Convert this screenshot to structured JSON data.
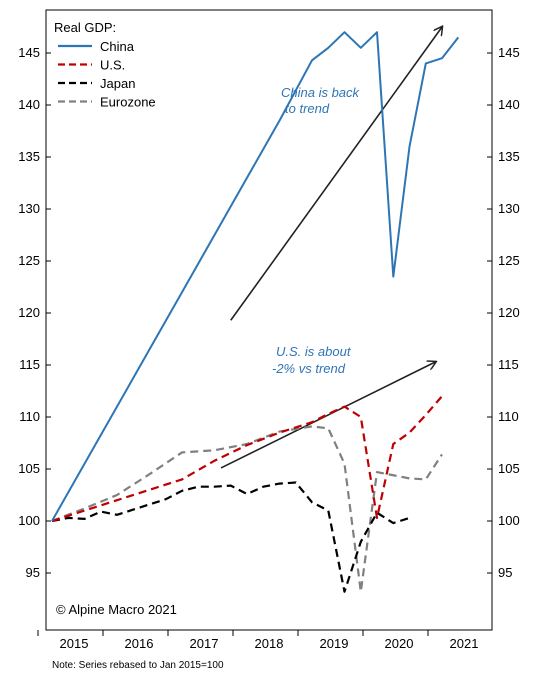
{
  "chart_data": {
    "type": "line",
    "legend_title": "Real GDP:",
    "legend_position": "top-left",
    "ylim": [
      90,
      148
    ],
    "yticks": [
      95,
      100,
      105,
      110,
      115,
      120,
      125,
      130,
      135,
      140,
      145
    ],
    "ytick_labels": [
      "95",
      "100",
      "105",
      "110",
      "115",
      "120",
      "125",
      "130",
      "135",
      "140",
      "145"
    ],
    "xlim": [
      2015.0,
      2021.5
    ],
    "xticks": [
      2015,
      2016,
      2017,
      2018,
      2019,
      2020,
      2021
    ],
    "xtick_labels": [
      "2015",
      "2016",
      "2017",
      "2018",
      "2019",
      "2020",
      "2021"
    ],
    "grid": false,
    "series": [
      {
        "name": "China",
        "color": "#2e75b6",
        "style": "solid",
        "points": [
          [
            2015.0,
            100
          ],
          [
            2015.5,
            105.5
          ],
          [
            2016.0,
            111
          ],
          [
            2016.5,
            116.5
          ],
          [
            2017.0,
            122
          ],
          [
            2017.5,
            127.5
          ],
          [
            2018.0,
            133
          ],
          [
            2018.5,
            138.5
          ],
          [
            2019.0,
            144.3
          ],
          [
            2019.25,
            145.5
          ],
          [
            2019.5,
            147
          ],
          [
            2019.75,
            145.5
          ],
          [
            2020.0,
            147
          ],
          [
            2020.25,
            123.5
          ],
          [
            2020.5,
            136
          ],
          [
            2020.75,
            144
          ],
          [
            2021.0,
            144.5
          ],
          [
            2021.25,
            146.5
          ]
        ]
      },
      {
        "name": "U.S.",
        "color": "#c00000",
        "style": "dashed",
        "points": [
          [
            2015.0,
            100
          ],
          [
            2015.5,
            101
          ],
          [
            2016.0,
            102
          ],
          [
            2016.5,
            103
          ],
          [
            2017.0,
            104
          ],
          [
            2017.5,
            105.8
          ],
          [
            2018.0,
            107.3
          ],
          [
            2018.5,
            108.5
          ],
          [
            2019.0,
            109.5
          ],
          [
            2019.25,
            110.3
          ],
          [
            2019.5,
            111
          ],
          [
            2019.75,
            110
          ],
          [
            2020.0,
            100.3
          ],
          [
            2020.25,
            107.4
          ],
          [
            2020.5,
            108.5
          ],
          [
            2020.75,
            110.2
          ],
          [
            2021.0,
            112
          ]
        ]
      },
      {
        "name": "Japan",
        "color": "#000000",
        "style": "dashed",
        "points": [
          [
            2015.0,
            100
          ],
          [
            2015.25,
            100.3
          ],
          [
            2015.5,
            100.2
          ],
          [
            2015.75,
            100.9
          ],
          [
            2016.0,
            100.6
          ],
          [
            2016.25,
            101.1
          ],
          [
            2016.5,
            101.6
          ],
          [
            2016.75,
            102.1
          ],
          [
            2017.0,
            102.9
          ],
          [
            2017.25,
            103.3
          ],
          [
            2017.5,
            103.3
          ],
          [
            2017.75,
            103.4
          ],
          [
            2018.0,
            102.6
          ],
          [
            2018.25,
            103.3
          ],
          [
            2018.5,
            103.6
          ],
          [
            2018.75,
            103.7
          ],
          [
            2019.0,
            101.8
          ],
          [
            2019.25,
            101
          ],
          [
            2019.5,
            93.2
          ],
          [
            2019.75,
            98
          ],
          [
            2020.0,
            100.8
          ],
          [
            2020.25,
            99.8
          ],
          [
            2020.5,
            100.3
          ]
        ]
      },
      {
        "name": "Eurozone",
        "color": "#808080",
        "style": "dashed",
        "points": [
          [
            2015.0,
            100
          ],
          [
            2015.5,
            101.2
          ],
          [
            2016.0,
            102.5
          ],
          [
            2016.5,
            104.5
          ],
          [
            2017.0,
            106.6
          ],
          [
            2017.5,
            106.8
          ],
          [
            2018.0,
            107.4
          ],
          [
            2018.5,
            108.6
          ],
          [
            2019.0,
            109.1
          ],
          [
            2019.25,
            108.9
          ],
          [
            2019.5,
            105.5
          ],
          [
            2019.75,
            93.2
          ],
          [
            2020.0,
            104.7
          ],
          [
            2020.5,
            104.1
          ],
          [
            2020.75,
            104
          ],
          [
            2021.0,
            106.4
          ]
        ]
      }
    ],
    "trend_lines": [
      {
        "from": [
          2017.75,
          119.3
        ],
        "to": [
          2021.0,
          147.5
        ]
      },
      {
        "from": [
          2017.6,
          105.1
        ],
        "to": [
          2020.9,
          115.3
        ]
      }
    ],
    "annotations": [
      {
        "lines": [
          "China is back",
          "to trend"
        ]
      },
      {
        "lines": [
          "U.S. is about",
          "-2% vs trend"
        ]
      }
    ],
    "copyright": "© Alpine Macro 2021",
    "note": "Note: Series rebased to Jan 2015=100"
  }
}
